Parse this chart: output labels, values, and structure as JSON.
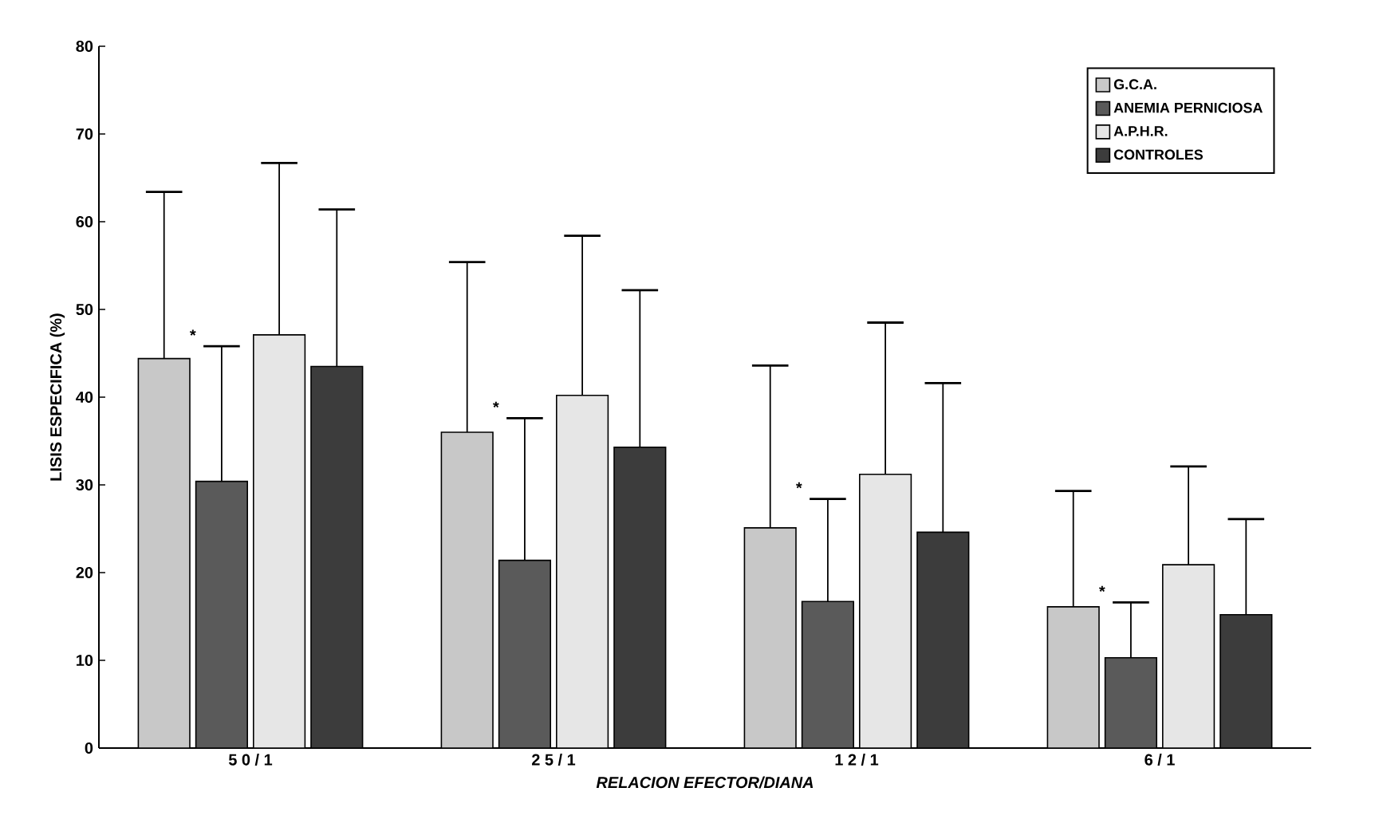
{
  "chart_data": {
    "type": "bar",
    "xlabel": "RELACION EFECTOR/DIANA",
    "ylabel": "LISIS  ESPECIFICA  (%)",
    "categories": [
      "5 0 / 1",
      "2 5 / 1",
      "1 2 / 1",
      "6 / 1"
    ],
    "series": [
      {
        "name": "G.C.A.",
        "color": "#c8c8c8",
        "values": [
          44.4,
          36.0,
          25.1,
          16.1
        ],
        "errors": [
          [
            44.4,
            63.4
          ],
          [
            36.0,
            55.4
          ],
          [
            25.1,
            43.6
          ],
          [
            16.1,
            29.3
          ]
        ]
      },
      {
        "name": "ANEMIA PERNICIOSA",
        "color": "#5a5a5a",
        "values": [
          30.4,
          21.4,
          16.7,
          10.3
        ],
        "errors": [
          [
            30.4,
            45.8
          ],
          [
            21.4,
            37.6
          ],
          [
            16.7,
            28.4
          ],
          [
            10.3,
            16.6
          ]
        ]
      },
      {
        "name": "A.P.H.R.",
        "color": "#e6e6e6",
        "values": [
          47.1,
          40.2,
          31.2,
          20.9
        ],
        "errors": [
          [
            47.1,
            66.7
          ],
          [
            40.2,
            58.4
          ],
          [
            31.2,
            48.5
          ],
          [
            20.9,
            32.1
          ]
        ]
      },
      {
        "name": "CONTROLES",
        "color": "#3c3c3c",
        "values": [
          43.5,
          34.3,
          24.6,
          15.2
        ],
        "errors": [
          [
            43.5,
            61.4
          ],
          [
            34.3,
            52.2
          ],
          [
            24.6,
            41.6
          ],
          [
            15.2,
            26.1
          ]
        ]
      }
    ],
    "annotations": [
      "*",
      "*",
      "*",
      "*"
    ],
    "ylim": [
      0,
      80
    ],
    "yticks": [
      0,
      10,
      20,
      30,
      40,
      50,
      60,
      70,
      80
    ],
    "grid": false,
    "legend": "top right"
  }
}
